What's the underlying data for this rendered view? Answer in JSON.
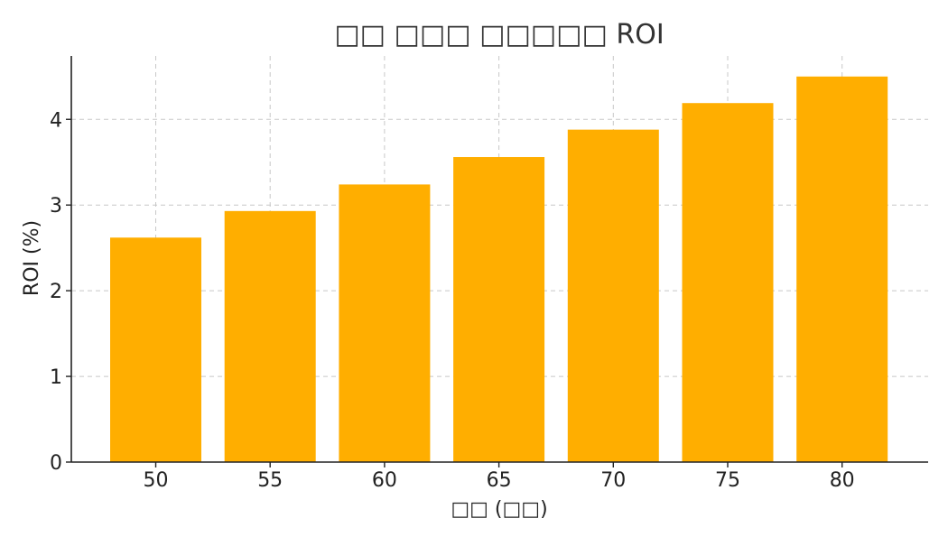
{
  "chart_data": {
    "type": "bar",
    "title": "□□ □□□ □□□□□ ROI",
    "xlabel": "□□ (□□)",
    "ylabel": "ROI (%)",
    "categories": [
      "50",
      "55",
      "60",
      "65",
      "70",
      "75",
      "80"
    ],
    "values": [
      2.62,
      2.93,
      3.24,
      3.56,
      3.88,
      4.19,
      4.5
    ],
    "ylim": [
      0,
      4.74
    ],
    "yticks": [
      0,
      1,
      2,
      3,
      4
    ],
    "grid": true,
    "bar_color": "#FFAE00",
    "legend": "none"
  }
}
